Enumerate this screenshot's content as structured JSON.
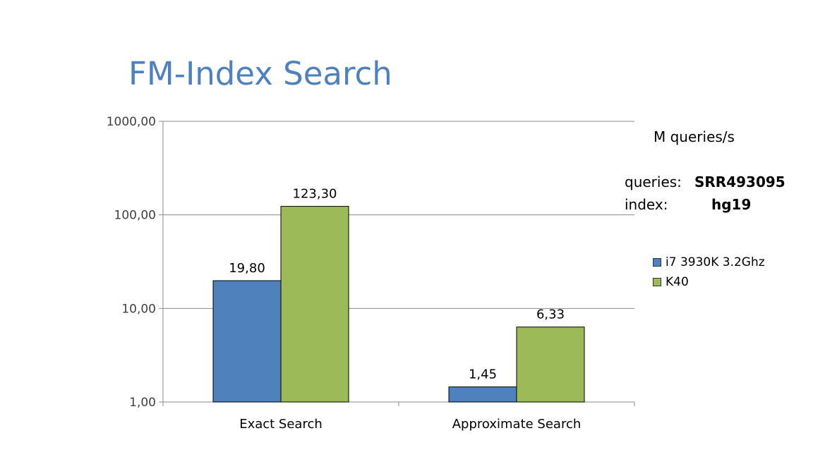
{
  "slide": {
    "title": "FM-Index Search"
  },
  "info": {
    "unit": "M queries/s",
    "queries_label": "queries:",
    "queries_value": "SRR493095",
    "index_label": "index:",
    "index_value": "hg19"
  },
  "colors": {
    "title": "#4f81bd",
    "series1": "#4f81bd",
    "series2": "#9bbb59"
  },
  "chart_data": {
    "type": "bar",
    "y_scale": "log",
    "ylim": [
      1,
      1000
    ],
    "y_ticks": [
      1,
      10,
      100,
      1000
    ],
    "y_tick_labels": [
      "1,00",
      "10,00",
      "100,00",
      "1000,00"
    ],
    "categories": [
      "Exact Search",
      "Approximate Search"
    ],
    "series": [
      {
        "name": "i7 3930K 3.2Ghz",
        "values": [
          19.8,
          1.45
        ],
        "labels": [
          "19,80",
          "1,45"
        ],
        "color": "#4f81bd"
      },
      {
        "name": "K40",
        "values": [
          123.3,
          6.33
        ],
        "labels": [
          "123,30",
          "6,33"
        ],
        "color": "#9bbb59"
      }
    ],
    "legend_position": "right",
    "grid": true
  }
}
